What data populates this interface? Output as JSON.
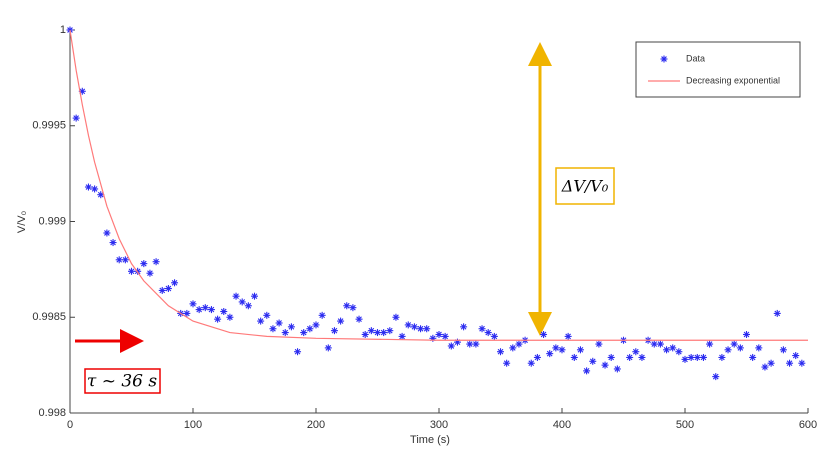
{
  "chart_data": {
    "type": "scatter",
    "xlabel": "Time (s)",
    "ylabel": "V/V₀",
    "xlim": [
      0,
      600
    ],
    "xticks": [
      0,
      100,
      200,
      300,
      400,
      500,
      600
    ],
    "ylim": [
      0.998,
      1
    ],
    "yticks": [
      0.998,
      0.9985,
      0.999,
      0.9995,
      1
    ],
    "legend": "top-right",
    "series": [
      {
        "name": "Data",
        "mode": "markers",
        "color": "#2b2bf0",
        "x": [
          0,
          5,
          10,
          15,
          20,
          25,
          30,
          35,
          40,
          45,
          50,
          55,
          60,
          65,
          70,
          75,
          80,
          85,
          90,
          95,
          100,
          105,
          110,
          115,
          120,
          125,
          130,
          135,
          140,
          145,
          150,
          155,
          160,
          165,
          170,
          175,
          180,
          185,
          190,
          195,
          200,
          205,
          210,
          215,
          220,
          225,
          230,
          235,
          240,
          245,
          250,
          255,
          260,
          265,
          270,
          275,
          280,
          285,
          290,
          295,
          300,
          305,
          310,
          315,
          320,
          325,
          330,
          335,
          340,
          345,
          350,
          355,
          360,
          365,
          370,
          375,
          380,
          385,
          390,
          395,
          400,
          405,
          410,
          415,
          420,
          425,
          430,
          435,
          440,
          445,
          450,
          455,
          460,
          465,
          470,
          475,
          480,
          485,
          490,
          495,
          500,
          505,
          510,
          515,
          520,
          525,
          530,
          535,
          540,
          545,
          550,
          555,
          560,
          565,
          570,
          575,
          580,
          585,
          590,
          595
        ],
        "values": [
          1.0,
          0.99954,
          0.99968,
          0.99918,
          0.99917,
          0.99914,
          0.99894,
          0.99889,
          0.9988,
          0.9988,
          0.99874,
          0.99874,
          0.99878,
          0.99873,
          0.99879,
          0.99864,
          0.99865,
          0.99868,
          0.99852,
          0.99852,
          0.99857,
          0.99854,
          0.99855,
          0.99854,
          0.99849,
          0.99853,
          0.9985,
          0.99861,
          0.99858,
          0.99856,
          0.99861,
          0.99848,
          0.99851,
          0.99844,
          0.99847,
          0.99842,
          0.99845,
          0.99832,
          0.99842,
          0.99844,
          0.99846,
          0.99851,
          0.99834,
          0.99843,
          0.99848,
          0.99856,
          0.99855,
          0.99849,
          0.99841,
          0.99843,
          0.99842,
          0.99842,
          0.99843,
          0.9985,
          0.9984,
          0.99846,
          0.99845,
          0.99844,
          0.99844,
          0.99839,
          0.99841,
          0.9984,
          0.99835,
          0.99837,
          0.99845,
          0.99836,
          0.99836,
          0.99844,
          0.99842,
          0.9984,
          0.99832,
          0.99826,
          0.99834,
          0.99836,
          0.99838,
          0.99826,
          0.99829,
          0.99841,
          0.99831,
          0.99834,
          0.99833,
          0.9984,
          0.99829,
          0.99833,
          0.99822,
          0.99827,
          0.99836,
          0.99825,
          0.99829,
          0.99823,
          0.99838,
          0.99829,
          0.99832,
          0.99829,
          0.99838,
          0.99836,
          0.99836,
          0.99833,
          0.99834,
          0.99832,
          0.99828,
          0.99829,
          0.99829,
          0.99829,
          0.99836,
          0.99819,
          0.99829,
          0.99833,
          0.99836,
          0.99834,
          0.99841,
          0.99829,
          0.99834,
          0.99824,
          0.99826,
          0.99852,
          0.99833,
          0.99826,
          0.9983,
          0.99826
        ]
      },
      {
        "name": "Decreasing exponential",
        "mode": "line",
        "color": "#ff7a7a",
        "x": [
          0,
          5,
          10,
          15,
          20,
          30,
          40,
          50,
          60,
          80,
          100,
          130,
          160,
          200,
          300,
          400,
          500,
          600
        ],
        "values": [
          1.0,
          0.99979,
          0.99961,
          0.99945,
          0.99931,
          0.99908,
          0.99891,
          0.99878,
          0.99869,
          0.99856,
          0.99848,
          0.99842,
          0.9984,
          0.99839,
          0.99838,
          0.99838,
          0.99838,
          0.99838
        ]
      }
    ],
    "annotations": [
      "τ ~ 36 s",
      "ΔV/V₀"
    ]
  }
}
